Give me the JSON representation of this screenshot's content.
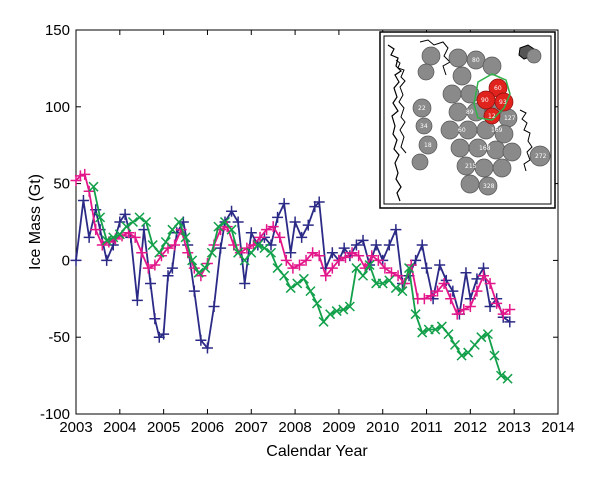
{
  "chart_data": {
    "type": "line",
    "title": "",
    "xlabel": "Calendar Year",
    "ylabel": "Ice Mass (Gt)",
    "xlim": [
      2003,
      2014
    ],
    "ylim": [
      -100,
      150
    ],
    "xticks": [
      "2003",
      "2004",
      "2005",
      "2006",
      "2007",
      "2008",
      "2009",
      "2010",
      "2011",
      "2012",
      "2013",
      "2014"
    ],
    "yticks": [
      "150",
      "100",
      "50",
      "0",
      "-50",
      "-100"
    ],
    "grid": false,
    "legend": "none",
    "series": [
      {
        "color": "#2b2a86",
        "marker": "plus",
        "x": [
          2003.0,
          2003.17,
          2003.3,
          2003.45,
          2003.55,
          2003.7,
          2003.85,
          2004.0,
          2004.12,
          2004.25,
          2004.4,
          2004.55,
          2004.7,
          2004.8,
          2004.9,
          2005.0,
          2005.1,
          2005.2,
          2005.3,
          2005.45,
          2005.55,
          2005.7,
          2005.85,
          2006.0,
          2006.15,
          2006.3,
          2006.4,
          2006.55,
          2006.7,
          2006.85,
          2007.0,
          2007.15,
          2007.3,
          2007.45,
          2007.6,
          2007.75,
          2007.9,
          2008.0,
          2008.15,
          2008.3,
          2008.45,
          2008.55,
          2008.7,
          2008.85,
          2009.0,
          2009.12,
          2009.25,
          2009.4,
          2009.55,
          2009.7,
          2009.85,
          2010.0,
          2010.15,
          2010.3,
          2010.45,
          2010.6,
          2010.75,
          2010.9,
          2011.0,
          2011.15,
          2011.3,
          2011.45,
          2011.6,
          2011.75,
          2011.9,
          2012.0,
          2012.15,
          2012.3,
          2012.45,
          2012.6,
          2012.75,
          2012.9
        ],
        "y": [
          0,
          39,
          15,
          33,
          20,
          0,
          10,
          25,
          30,
          15,
          -26,
          20,
          -15,
          -38,
          -50,
          -48,
          -10,
          -5,
          18,
          25,
          10,
          -20,
          -52,
          -57,
          -30,
          8,
          25,
          32,
          25,
          -15,
          18,
          10,
          15,
          10,
          28,
          37,
          5,
          25,
          15,
          23,
          35,
          38,
          -5,
          5,
          0,
          8,
          3,
          10,
          13,
          -3,
          10,
          0,
          10,
          20,
          -15,
          -10,
          0,
          10,
          -5,
          -25,
          -3,
          -13,
          -20,
          -35,
          -8,
          -25,
          -12,
          -5,
          -30,
          -25,
          -37,
          -40
        ]
      },
      {
        "color": "#e3178a",
        "marker": "plus",
        "x": [
          2003.0,
          2003.1,
          2003.2,
          2003.3,
          2003.45,
          2003.6,
          2003.75,
          2003.9,
          2004.05,
          2004.2,
          2004.35,
          2004.5,
          2004.65,
          2004.8,
          2004.95,
          2005.1,
          2005.25,
          2005.4,
          2005.55,
          2005.7,
          2005.85,
          2006.0,
          2006.15,
          2006.3,
          2006.45,
          2006.6,
          2006.75,
          2006.9,
          2007.05,
          2007.2,
          2007.35,
          2007.5,
          2007.65,
          2007.8,
          2007.95,
          2008.1,
          2008.25,
          2008.4,
          2008.55,
          2008.7,
          2008.85,
          2009.0,
          2009.15,
          2009.3,
          2009.45,
          2009.6,
          2009.75,
          2009.9,
          2010.05,
          2010.2,
          2010.35,
          2010.5,
          2010.65,
          2010.8,
          2010.95,
          2011.1,
          2011.25,
          2011.4,
          2011.55,
          2011.7,
          2011.85,
          2012.0,
          2012.15,
          2012.3,
          2012.45,
          2012.6,
          2012.75,
          2012.9
        ],
        "y": [
          52,
          55,
          56,
          45,
          20,
          10,
          12,
          14,
          16,
          18,
          15,
          5,
          -5,
          -3,
          3,
          8,
          10,
          20,
          5,
          -5,
          -10,
          -2,
          10,
          20,
          22,
          10,
          5,
          8,
          10,
          15,
          20,
          22,
          15,
          0,
          -5,
          -3,
          0,
          5,
          3,
          -10,
          -5,
          0,
          2,
          5,
          3,
          -5,
          3,
          0,
          -5,
          -8,
          -10,
          -15,
          -3,
          -25,
          -25,
          -23,
          -20,
          -15,
          -25,
          -35,
          -32,
          -30,
          -20,
          -10,
          -15,
          -28,
          -35,
          -32
        ]
      },
      {
        "color": "#12a04a",
        "marker": "x",
        "x": [
          2003.4,
          2003.55,
          2003.7,
          2003.85,
          2004.0,
          2004.15,
          2004.3,
          2004.45,
          2004.6,
          2004.75,
          2004.9,
          2005.05,
          2005.2,
          2005.35,
          2005.5,
          2005.65,
          2005.8,
          2005.95,
          2006.1,
          2006.25,
          2006.4,
          2006.55,
          2006.7,
          2006.85,
          2007.0,
          2007.15,
          2007.3,
          2007.45,
          2007.6,
          2007.75,
          2007.9,
          2008.05,
          2008.2,
          2008.35,
          2008.5,
          2008.65,
          2008.8,
          2008.95,
          2009.1,
          2009.25,
          2009.4,
          2009.55,
          2009.7,
          2009.85,
          2010.0,
          2010.15,
          2010.3,
          2010.45,
          2010.6,
          2010.75,
          2010.9,
          2011.05,
          2011.2,
          2011.35,
          2011.5,
          2011.65,
          2011.8,
          2011.95,
          2012.1,
          2012.25,
          2012.4,
          2012.55,
          2012.7,
          2012.85
        ],
        "y": [
          48,
          28,
          13,
          15,
          17,
          22,
          25,
          28,
          25,
          10,
          5,
          12,
          20,
          25,
          15,
          0,
          -8,
          -5,
          5,
          22,
          25,
          20,
          5,
          0,
          5,
          10,
          8,
          5,
          -5,
          -10,
          -18,
          -15,
          -12,
          -20,
          -28,
          -40,
          -35,
          -33,
          -32,
          -30,
          -5,
          -10,
          -3,
          -15,
          -15,
          -13,
          -18,
          -20,
          -5,
          -35,
          -47,
          -45,
          -45,
          -43,
          -48,
          -55,
          -62,
          -60,
          -55,
          -50,
          -48,
          -62,
          -75,
          -77
        ]
      }
    ]
  },
  "inset": {
    "labels": [
      "60",
      "90",
      "93",
      "12",
      "89",
      "168",
      "215",
      "169",
      "328",
      "272",
      "22",
      "34",
      "127",
      "60",
      "18",
      "80"
    ]
  }
}
